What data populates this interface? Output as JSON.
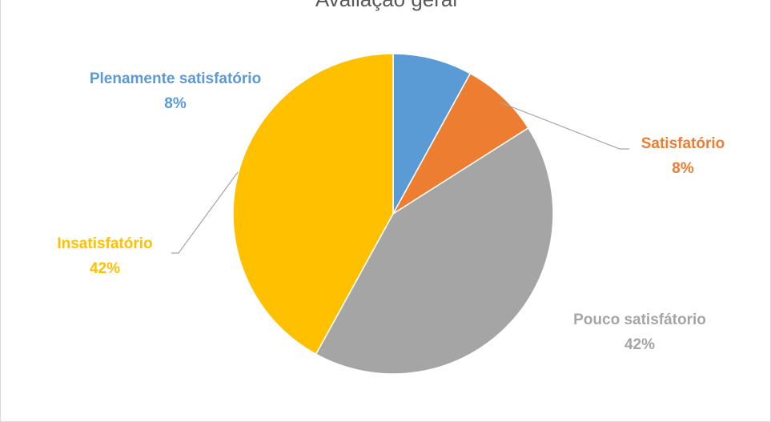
{
  "chart_data": {
    "type": "pie",
    "title": "Avaliação geral",
    "slices": [
      {
        "label": "Plenamente satisfatório",
        "value": 8,
        "value_label": "8%",
        "color": "#5b9bd5"
      },
      {
        "label": "Satisfatório",
        "value": 8,
        "value_label": "8%",
        "color": "#ed7d31"
      },
      {
        "label": "Pouco satisfátorio",
        "value": 42,
        "value_label": "42%",
        "color": "#a5a5a5"
      },
      {
        "label": "Insatisfatório",
        "value": 42,
        "value_label": "42%",
        "color": "#ffc000"
      }
    ],
    "start_angle": "12 o'clock",
    "direction": "clockwise",
    "legend": "none",
    "data_labels": "category name and percentage, outside with leader lines"
  }
}
